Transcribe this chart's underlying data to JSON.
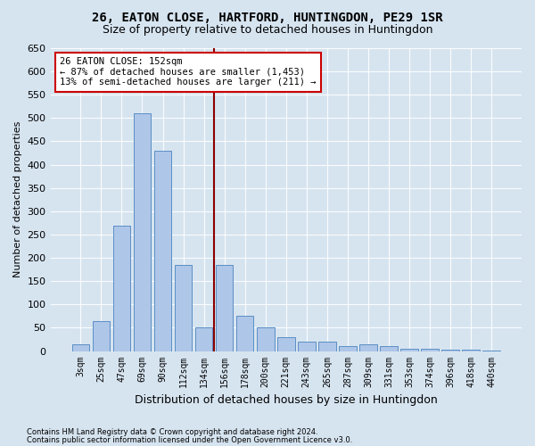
{
  "title": "26, EATON CLOSE, HARTFORD, HUNTINGDON, PE29 1SR",
  "subtitle": "Size of property relative to detached houses in Huntingdon",
  "xlabel": "Distribution of detached houses by size in Huntingdon",
  "ylabel": "Number of detached properties",
  "bar_labels": [
    "3sqm",
    "25sqm",
    "47sqm",
    "69sqm",
    "90sqm",
    "112sqm",
    "134sqm",
    "156sqm",
    "178sqm",
    "200sqm",
    "221sqm",
    "243sqm",
    "265sqm",
    "287sqm",
    "309sqm",
    "331sqm",
    "353sqm",
    "374sqm",
    "396sqm",
    "418sqm",
    "440sqm"
  ],
  "bar_values": [
    15,
    65,
    270,
    510,
    430,
    185,
    50,
    185,
    75,
    50,
    30,
    20,
    20,
    10,
    15,
    10,
    5,
    5,
    3,
    3,
    2
  ],
  "bar_color": "#aec6e8",
  "bar_edge_color": "#5b8ec4",
  "vline_color": "#8b0000",
  "annotation_title": "26 EATON CLOSE: 152sqm",
  "annotation_line1": "← 87% of detached houses are smaller (1,453)",
  "annotation_line2": "13% of semi-detached houses are larger (211) →",
  "annotation_box_color": "#ffffff",
  "annotation_box_edge": "#cc0000",
  "background_color": "#d6e4f0",
  "plot_bg_color": "#d6e4f0",
  "ylim": [
    0,
    650
  ],
  "yticks": [
    0,
    50,
    100,
    150,
    200,
    250,
    300,
    350,
    400,
    450,
    500,
    550,
    600,
    650
  ],
  "footer_line1": "Contains HM Land Registry data © Crown copyright and database right 2024.",
  "footer_line2": "Contains public sector information licensed under the Open Government Licence v3.0."
}
